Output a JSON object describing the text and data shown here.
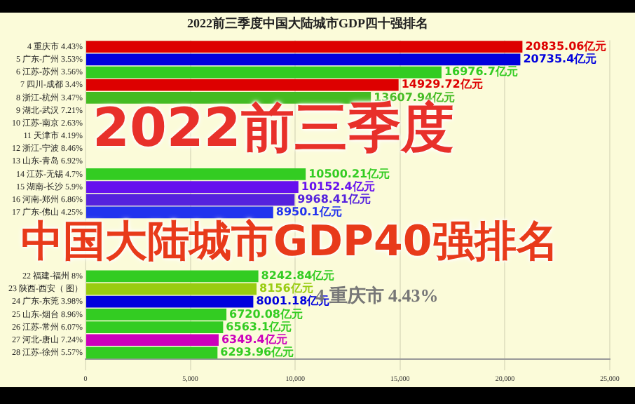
{
  "chart_data": {
    "type": "bar",
    "orientation": "horizontal",
    "title": "2022前三季度中国大陆城市GDP四十强排名",
    "categories": [
      "4 重庆市 4.43%",
      "5 广东-广州 3.53%",
      "6 江苏-苏州 3.56%",
      "7 四川-成都 3.4%",
      "8 浙江-杭州 3.47%",
      "9 湖北-武汉 7.21%",
      "10 江苏-南京 2.63%",
      "11 天津市 4.19%",
      "12 浙江-宁波 8.46%",
      "13 山东-青岛 6.92%",
      "14 江苏-无锡 4.7%",
      "15 湖南-长沙 5.9%",
      "16 河南-郑州 6.86%",
      "17 广东-佛山 4.25%",
      null,
      null,
      null,
      null,
      "22 福建-福州 8%",
      "23 陕西-西安（ 图）",
      "24 广东-东莞 3.98%",
      "25 山东-烟台 8.96%",
      "26 江苏-常州 6.07%",
      "27 河北-唐山 7.24%",
      "28 江苏-徐州 5.57%"
    ],
    "values": [
      20835.06,
      20735.4,
      16976.7,
      14929.72,
      13607.94,
      null,
      null,
      null,
      null,
      null,
      10500.21,
      10152.4,
      9968.41,
      8950.1,
      null,
      null,
      null,
      null,
      8242.84,
      8156,
      8001.18,
      6720.08,
      6563.1,
      6349.4,
      6293.96
    ],
    "value_labels": [
      "20835.06亿元",
      "20735.4亿元",
      "16976.7亿元",
      "14929.72亿元",
      "13607.94亿元",
      null,
      null,
      null,
      null,
      null,
      "10500.21亿元",
      "10152.4亿元",
      "9968.41亿元",
      "8950.1亿元",
      null,
      null,
      null,
      null,
      "8242.84亿元",
      "8156亿元",
      "8001.18亿元",
      "6720.08亿元",
      "6563.1亿元",
      "6349.4亿元",
      "6293.96亿元"
    ],
    "colors": [
      "#dd0000",
      "#0000dd",
      "#33cc22",
      "#dd0000",
      "#44bb22",
      "#7733dd",
      "#7733dd",
      "#33cc22",
      "#33cc22",
      "#33cc22",
      "#33cc22",
      "#6611ee",
      "#5522dd",
      "#2233ee",
      "#33cc22",
      "#33cc22",
      "#33cc22",
      "#33cc22",
      "#33cc22",
      "#99cc11",
      "#0000dd",
      "#33cc22",
      "#33cc22",
      "#cc00bb",
      "#33cc22"
    ],
    "xlim": [
      0,
      25000
    ],
    "xticks": [
      0,
      {
        "value": 5000,
        "label": "5,000"
      },
      {
        "value": 10000,
        "label": "10,000"
      },
      {
        "value": 15000,
        "label": "15,000"
      },
      {
        "value": 20000,
        "label": "20,000"
      },
      {
        "value": 25000,
        "label": "25,000"
      }
    ],
    "grid": "x",
    "annotations": [
      "2022前三季度",
      "中国大陆城市GDP40强排名",
      "4 重庆市 4.43%"
    ]
  }
}
